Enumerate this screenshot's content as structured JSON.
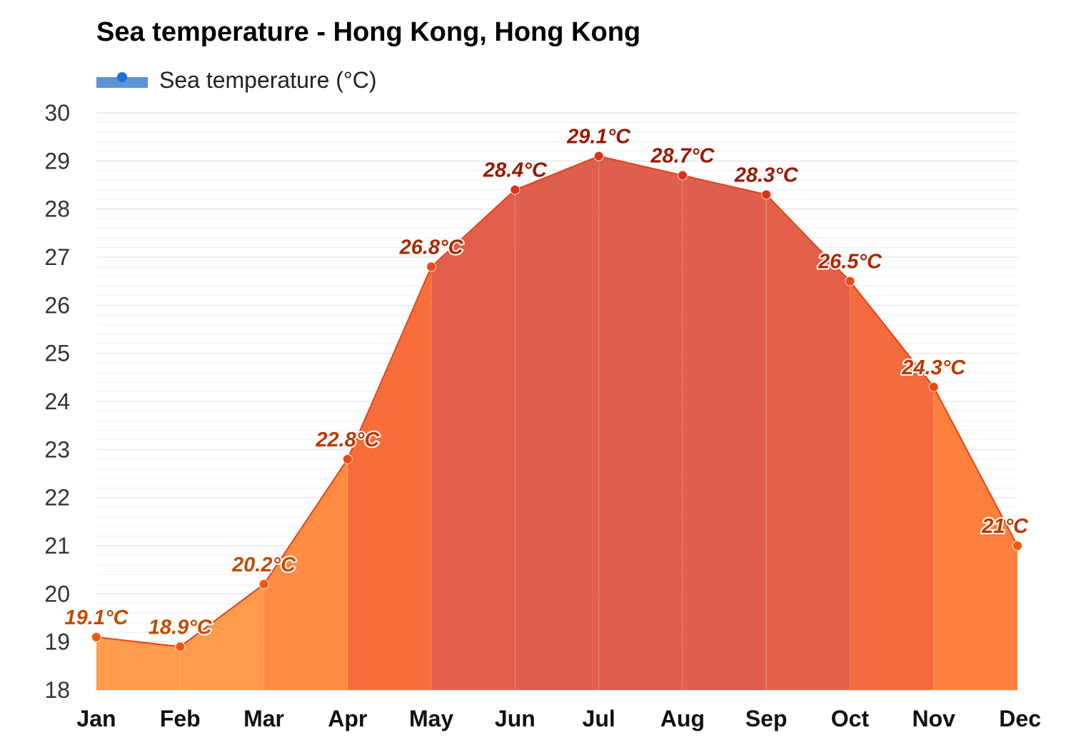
{
  "title": "Sea temperature - Hong Kong, Hong Kong",
  "legend": {
    "label": "Sea temperature (°C)",
    "color": "#1e6fd4"
  },
  "chart_data": {
    "type": "area",
    "title": "Sea temperature - Hong Kong, Hong Kong",
    "xlabel": "",
    "ylabel": "",
    "categories": [
      "Jan",
      "Feb",
      "Mar",
      "Apr",
      "May",
      "Jun",
      "Jul",
      "Aug",
      "Sep",
      "Oct",
      "Nov",
      "Dec"
    ],
    "series": [
      {
        "name": "Sea temperature (°C)",
        "values": [
          19.1,
          18.9,
          20.2,
          22.8,
          26.8,
          28.4,
          29.1,
          28.7,
          28.3,
          26.5,
          24.3,
          21.0
        ],
        "labels": [
          "19.1°C",
          "18.9°C",
          "20.2°C",
          "22.8°C",
          "26.8°C",
          "28.4°C",
          "29.1°C",
          "28.7°C",
          "28.3°C",
          "26.5°C",
          "24.3°C",
          "21°C"
        ]
      }
    ],
    "yticks": [
      "18",
      "19",
      "20",
      "21",
      "22",
      "23",
      "24",
      "25",
      "26",
      "27",
      "28",
      "29",
      "30"
    ],
    "ylim": [
      18,
      30
    ],
    "grid": true,
    "legend_position": "top-left",
    "colors": {
      "cool": "#ff9640",
      "warm": "#ff6a2a",
      "hot": "#dd5544",
      "line": "#e54418"
    }
  }
}
